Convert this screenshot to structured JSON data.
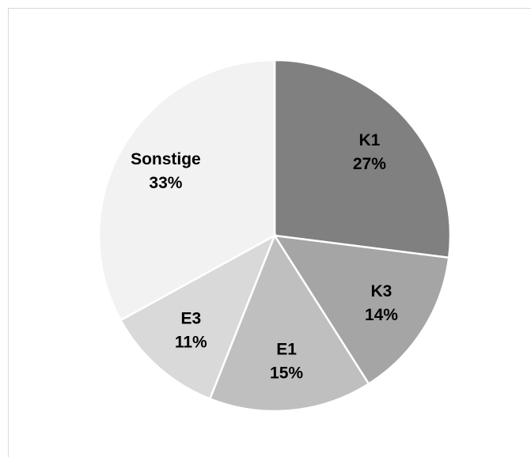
{
  "chart_data": {
    "type": "pie",
    "categories": [
      "K1",
      "K3",
      "E1",
      "E3",
      "Sonstige"
    ],
    "values": [
      27,
      14,
      15,
      11,
      33
    ],
    "value_labels": [
      "27%",
      "14%",
      "15%",
      "11%",
      "33%"
    ],
    "colors": [
      "#808080",
      "#a5a5a5",
      "#bfbfbf",
      "#d9d9d9",
      "#f2f2f2"
    ]
  }
}
